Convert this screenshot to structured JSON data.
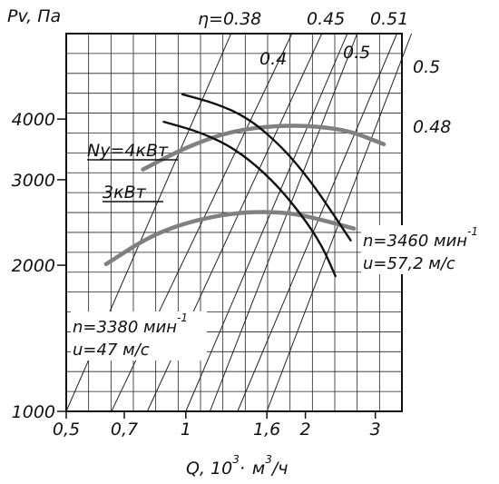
{
  "chart_data": {
    "type": "line",
    "title": "",
    "y_axis": {
      "label": "Pv, Па",
      "scale": "log",
      "range": [
        1000,
        6000
      ],
      "ticks": [
        {
          "value": 4000,
          "label": "4000"
        },
        {
          "value": 3000,
          "label": "3000"
        },
        {
          "value": 2000,
          "label": "2000"
        },
        {
          "value": 1000,
          "label": "1000"
        }
      ]
    },
    "x_axis": {
      "label": "Q, 10³· м³/ч",
      "label_parts": {
        "main": "Q, 10",
        "exp1": "3",
        "dot": "·",
        "unit": "м",
        "exp2": "3",
        "tail": "/ч"
      },
      "scale": "log",
      "range": [
        0.5,
        3.5
      ],
      "ticks": [
        {
          "value": 0.5,
          "label": "0,5"
        },
        {
          "value": 0.7,
          "label": "0,7"
        },
        {
          "value": 1,
          "label": "1"
        },
        {
          "value": 1.6,
          "label": "1,6"
        },
        {
          "value": 2,
          "label": "2"
        },
        {
          "value": 3,
          "label": "3"
        }
      ]
    },
    "grid": true,
    "efficiency_label_prefix": "η=",
    "efficiency_lines": [
      {
        "label": "0.38",
        "q_at_pmin": 0.5,
        "q_at_pmax": 1.3
      },
      {
        "label": "0.4",
        "q_at_pmin": 0.65,
        "q_at_pmax": 1.85
      },
      {
        "label": "0.45",
        "q_at_pmin": 0.8,
        "q_at_pmax": 2.2
      },
      {
        "label": "0.5",
        "q_at_pmin": 1.0,
        "q_at_pmax": 2.55
      },
      {
        "label": "0.51",
        "q_at_pmin": 1.15,
        "q_at_pmax": 2.7
      },
      {
        "label": "0.5",
        "q_at_pmin": 1.35,
        "q_at_pmax": 3.4
      },
      {
        "label": "0.48",
        "q_at_pmin": 1.6,
        "q_at_pmax": 3.7
      }
    ],
    "series": [
      {
        "name": "n=3460 мин⁻¹",
        "color": "#808080",
        "points": [
          [
            0.78,
            3150
          ],
          [
            1.0,
            3500
          ],
          [
            1.3,
            3780
          ],
          [
            1.7,
            3880
          ],
          [
            2.1,
            3870
          ],
          [
            2.6,
            3780
          ],
          [
            3.15,
            3550
          ]
        ]
      },
      {
        "name": "n=3380 мин⁻¹",
        "color": "#808080",
        "points": [
          [
            0.63,
            2010
          ],
          [
            0.8,
            2280
          ],
          [
            1.0,
            2450
          ],
          [
            1.3,
            2560
          ],
          [
            1.6,
            2580
          ],
          [
            1.9,
            2550
          ],
          [
            2.2,
            2480
          ],
          [
            2.65,
            2380
          ]
        ]
      },
      {
        "name": "Ny=4кВт",
        "color": "#111111",
        "points": [
          [
            0.98,
            4500
          ],
          [
            1.2,
            4300
          ],
          [
            1.45,
            4000
          ],
          [
            1.75,
            3500
          ],
          [
            2.05,
            3000
          ],
          [
            2.35,
            2550
          ],
          [
            2.6,
            2250
          ]
        ]
      },
      {
        "name": "3кВт",
        "color": "#111111",
        "points": [
          [
            0.88,
            3950
          ],
          [
            1.1,
            3750
          ],
          [
            1.35,
            3450
          ],
          [
            1.65,
            3000
          ],
          [
            1.95,
            2550
          ],
          [
            2.2,
            2200
          ],
          [
            2.38,
            1900
          ]
        ]
      }
    ],
    "annotations": {
      "power_4kw": "Ny=4кВт",
      "power_3kw": "3кВт",
      "upper_speed": "n=3460 мин",
      "upper_speed_exp": "-1",
      "upper_velocity": "u=57,2 м/с",
      "lower_speed": "n=3380 мин",
      "lower_speed_exp": "-1",
      "lower_velocity": "u=47 м/с"
    }
  }
}
